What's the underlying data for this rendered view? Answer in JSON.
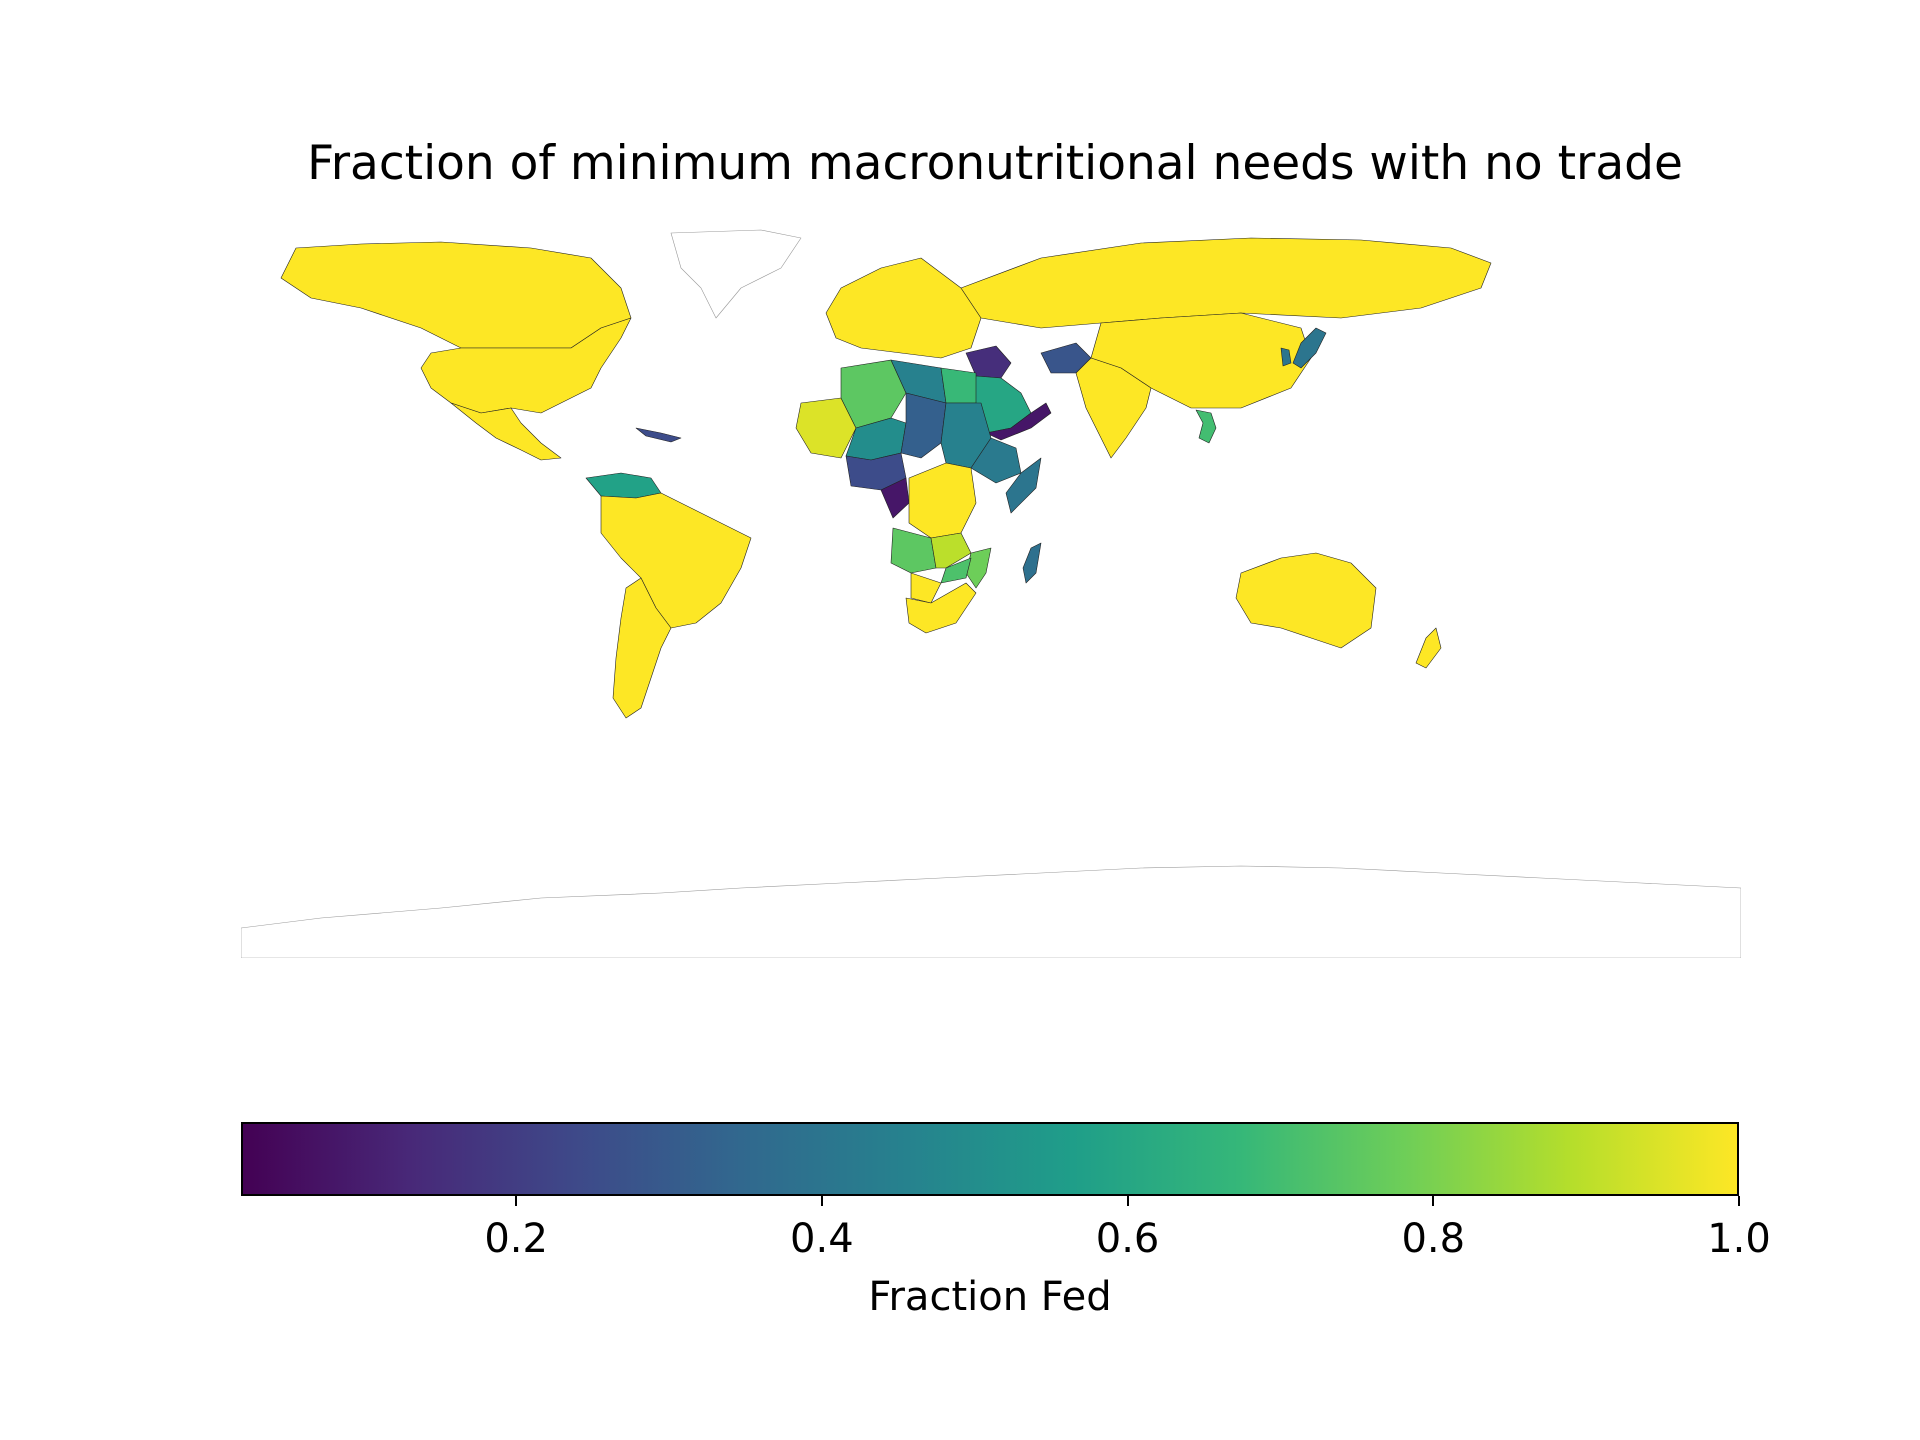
{
  "title": "Fraction of minimum macronutritional needs with no trade",
  "colorbar": {
    "label": "Fraction Fed",
    "min": 0.02,
    "max": 1.0,
    "ticks": [
      {
        "value": 0.2,
        "label": "0.2"
      },
      {
        "value": 0.4,
        "label": "0.4"
      },
      {
        "value": 0.6,
        "label": "0.6"
      },
      {
        "value": 0.8,
        "label": "0.8"
      },
      {
        "value": 1.0,
        "label": "1.0"
      }
    ],
    "colormap": "viridis",
    "colormap_stops": [
      "#440154",
      "#482878",
      "#3e4989",
      "#31688e",
      "#26828e",
      "#1f9e89",
      "#35b779",
      "#6ece58",
      "#b5de2b",
      "#fde725"
    ]
  },
  "map_data": {
    "type": "choropleth",
    "projection": "plate-carree",
    "regions": [
      {
        "name": "Canada",
        "value": 1.0
      },
      {
        "name": "Greenland",
        "value": null
      },
      {
        "name": "United States",
        "value": 1.0
      },
      {
        "name": "Mexico",
        "value": 1.0
      },
      {
        "name": "Cuba",
        "value": 0.25
      },
      {
        "name": "Venezuela",
        "value": 0.58
      },
      {
        "name": "Brazil",
        "value": 1.0
      },
      {
        "name": "Argentina",
        "value": 1.0
      },
      {
        "name": "Russia",
        "value": 1.0
      },
      {
        "name": "Europe",
        "value": 1.0
      },
      {
        "name": "Algeria",
        "value": 0.75
      },
      {
        "name": "Libya",
        "value": 0.45
      },
      {
        "name": "Egypt",
        "value": 0.68
      },
      {
        "name": "Sudan",
        "value": 0.45
      },
      {
        "name": "Chad",
        "value": 0.32
      },
      {
        "name": "Niger",
        "value": 0.5
      },
      {
        "name": "Mali",
        "value": 0.95
      },
      {
        "name": "Nigeria",
        "value": 0.25
      },
      {
        "name": "Ethiopia",
        "value": 0.42
      },
      {
        "name": "Somalia",
        "value": 0.4
      },
      {
        "name": "Congo",
        "value": 0.08
      },
      {
        "name": "DR Congo",
        "value": 1.0
      },
      {
        "name": "Angola",
        "value": 0.75
      },
      {
        "name": "Zambia",
        "value": 0.9
      },
      {
        "name": "Mozambique",
        "value": 0.78
      },
      {
        "name": "Zimbabwe",
        "value": 0.72
      },
      {
        "name": "Botswana",
        "value": 1.0
      },
      {
        "name": "South Africa",
        "value": 1.0
      },
      {
        "name": "Madagascar",
        "value": 0.38
      },
      {
        "name": "Saudi Arabia",
        "value": 0.6
      },
      {
        "name": "Yemen",
        "value": 0.08
      },
      {
        "name": "Iraq",
        "value": 0.15
      },
      {
        "name": "Afghanistan",
        "value": 0.28
      },
      {
        "name": "India",
        "value": 1.0
      },
      {
        "name": "China",
        "value": 1.0
      },
      {
        "name": "Japan",
        "value": 0.4
      },
      {
        "name": "South Korea",
        "value": 0.4
      },
      {
        "name": "Vietnam",
        "value": 0.7
      },
      {
        "name": "Australia",
        "value": 1.0
      },
      {
        "name": "New Zealand",
        "value": 1.0
      },
      {
        "name": "Antarctica",
        "value": null
      }
    ]
  }
}
